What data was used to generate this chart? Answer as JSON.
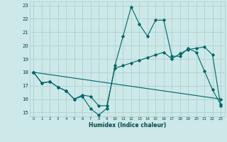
{
  "xlabel": "Humidex (Indice chaleur)",
  "bg_color": "#cce8e8",
  "grid_color": "#aacccc",
  "line_color": "#006666",
  "xlim": [
    -0.5,
    23.5
  ],
  "ylim": [
    14.7,
    23.3
  ],
  "xticks": [
    0,
    1,
    2,
    3,
    4,
    5,
    6,
    7,
    8,
    9,
    10,
    11,
    12,
    13,
    14,
    15,
    16,
    17,
    18,
    19,
    20,
    21,
    22,
    23
  ],
  "yticks": [
    15,
    16,
    17,
    18,
    19,
    20,
    21,
    22,
    23
  ],
  "line1_x": [
    0,
    1,
    2,
    3,
    4,
    5,
    6,
    7,
    8,
    9,
    10,
    11,
    12,
    13,
    14,
    15,
    16,
    17,
    18,
    19,
    20,
    21,
    22,
    23
  ],
  "line1_y": [
    18.0,
    17.2,
    17.3,
    16.9,
    16.6,
    16.0,
    16.2,
    15.3,
    14.8,
    15.3,
    18.5,
    20.7,
    22.9,
    21.6,
    20.7,
    21.9,
    21.9,
    19.2,
    19.2,
    19.8,
    19.5,
    18.1,
    16.7,
    15.6
  ],
  "line2_x": [
    0,
    1,
    2,
    3,
    4,
    5,
    6,
    7,
    8,
    9,
    10,
    11,
    12,
    13,
    14,
    15,
    16,
    17,
    18,
    19,
    20,
    21,
    22,
    23
  ],
  "line2_y": [
    18.0,
    17.2,
    17.3,
    16.9,
    16.6,
    16.0,
    16.3,
    16.2,
    15.5,
    15.5,
    18.3,
    18.5,
    18.7,
    18.9,
    19.1,
    19.3,
    19.5,
    19.0,
    19.4,
    19.7,
    19.8,
    19.9,
    19.3,
    15.5
  ],
  "line3_x": [
    0,
    23
  ],
  "line3_y": [
    18.0,
    16.0
  ]
}
